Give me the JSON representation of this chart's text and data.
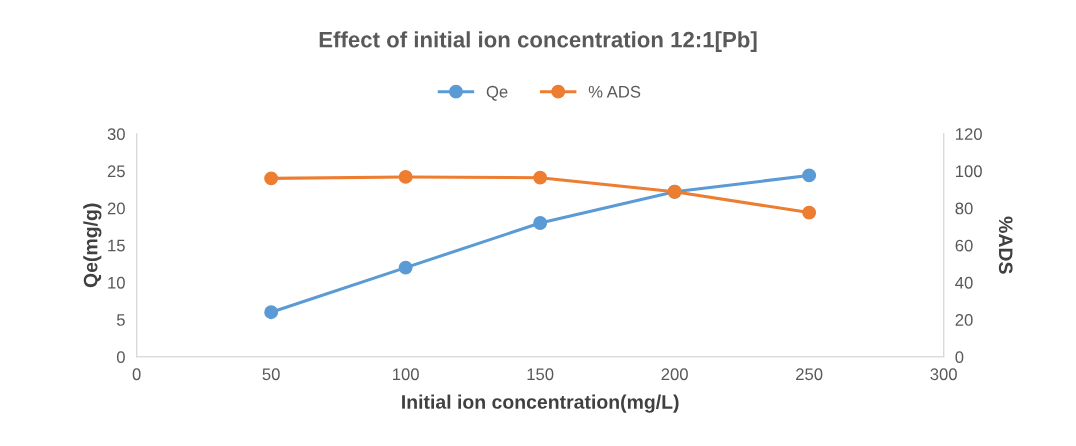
{
  "chart_data": {
    "type": "line",
    "title": "Effect of initial ion concentration 12:1[Pb]",
    "xlabel": "Initial ion concentration(mg/L)",
    "ylabel": "Qe(mg/g)",
    "y2label": "%ADS",
    "x": [
      50,
      100,
      150,
      200,
      250
    ],
    "series": [
      {
        "name": "Qe",
        "color": "#5b9bd5",
        "values": [
          6,
          12,
          18,
          22.2,
          24.4
        ]
      },
      {
        "name": "% ADS",
        "color": "#ed7d31",
        "values": [
          96,
          96.8,
          96.4,
          88.8,
          77.6
        ],
        "axis": "y2"
      }
    ],
    "xlim": [
      0,
      300
    ],
    "xticks": [
      0,
      50,
      100,
      150,
      200,
      250,
      300
    ],
    "ylim": [
      0,
      30
    ],
    "yticks": [
      0,
      5,
      10,
      15,
      20,
      25,
      30
    ],
    "y2lim": [
      0,
      120
    ],
    "y2ticks": [
      0,
      20,
      40,
      60,
      80,
      100,
      120
    ],
    "marker": "circle",
    "line_style": "solid",
    "grid": false,
    "legend": "top"
  }
}
